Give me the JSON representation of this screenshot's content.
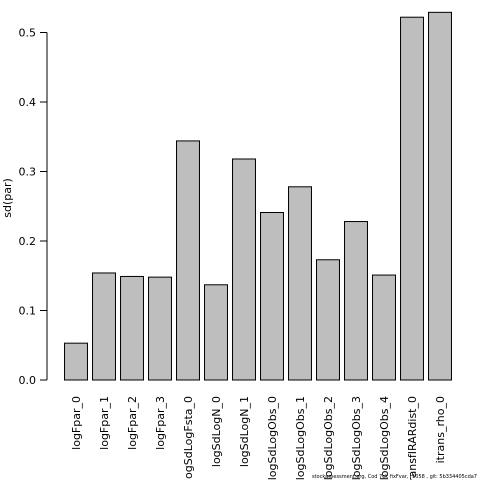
{
  "chart_data": {
    "type": "bar",
    "title": "",
    "xlabel": "",
    "ylabel": "sd(par)",
    "ylim": [
      0,
      0.53
    ],
    "yticks": [
      0.0,
      0.1,
      0.2,
      0.3,
      0.4,
      0.5
    ],
    "ytick_labels": [
      "0.0",
      "0.1",
      "0.2",
      "0.3",
      "0.4",
      "0.5"
    ],
    "grid": false,
    "bar_color": "#bebebe",
    "bar_edge_color": "#000000",
    "categories": [
      "logFpar_0",
      "logFpar_1",
      "logFpar_2",
      "logFpar_3",
      "logSdLogFsta_0",
      "logSdLogN_0",
      "logSdLogN_1",
      "logSdLogObs_0",
      "logSdLogObs_1",
      "logSdLogObs_2",
      "logSdLogObs_3",
      "logSdLogObs_4",
      "transfIRARdist_0",
      "itrans_rho_0"
    ],
    "values": [
      0.053,
      0.154,
      0.149,
      0.148,
      0.344,
      0.137,
      0.318,
      0.241,
      0.278,
      0.173,
      0.228,
      0.151,
      0.522,
      0.529
    ]
  },
  "footer": {
    "note": "stockassessment.org, Cod 7ek fixFvar, r1058 , git: 5b334405cda7"
  }
}
